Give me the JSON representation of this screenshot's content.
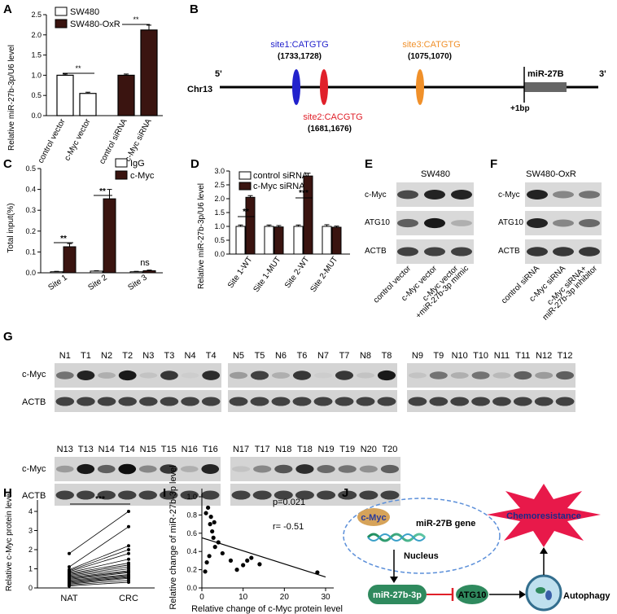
{
  "panels": {
    "A": {
      "label": "A",
      "ylabel": "Relative miR-27b-3p/U6 level",
      "legend": [
        "SW480",
        "SW480-OxR"
      ],
      "yticks": [
        "0.0",
        "0.5",
        "1.0",
        "1.5",
        "2.0",
        "2.5"
      ],
      "categories": [
        "control vector",
        "c-Myc vector",
        "control siRNA",
        "c-Myc siRNA"
      ],
      "sig": [
        "**",
        "**"
      ]
    },
    "B": {
      "label": "B",
      "site1_name": "site1:CATGTG",
      "site1_pos": "(1733,1728)",
      "site2_name": "site2:CACGTG",
      "site2_pos": "(1681,1676)",
      "site3_name": "site3:CATGTG",
      "site3_pos": "(1075,1070)",
      "gene": "miR-27B",
      "chr": "Chr13",
      "five": "5'",
      "three": "3'",
      "tss": "+1bp",
      "site1_color": "#2222cc",
      "site2_color": "#e0202a",
      "site3_color": "#f0902a"
    },
    "C": {
      "label": "C",
      "ylabel": "Total input(%)",
      "legend": [
        "IgG",
        "c-Myc"
      ],
      "yticks": [
        "0.0",
        "0.1",
        "0.2",
        "0.3",
        "0.4",
        "0.5"
      ],
      "categories": [
        "Site 1",
        "Site 2",
        "Site 3"
      ],
      "sig": [
        "**",
        "**",
        "ns"
      ]
    },
    "D": {
      "label": "D",
      "ylabel": "Relative miR-27b-3p/U6 level",
      "legend": [
        "control siRNA",
        "c-Myc siRNA"
      ],
      "yticks": [
        "0.0",
        "0.5",
        "1.0",
        "1.5",
        "2.0",
        "2.5",
        "3.0"
      ],
      "categories": [
        "Site 1-WT",
        "Site 1-MUT",
        "Site 2-WT",
        "Site 2-MUT"
      ],
      "sig": [
        "**",
        "***"
      ]
    },
    "E": {
      "label": "E",
      "cell": "SW480",
      "rows": [
        "c-Myc",
        "ATG10",
        "ACTB"
      ],
      "lanes": [
        "control vector",
        "c-Myc vector",
        "c-Myc vector",
        "+miR-27b-3p mimic"
      ]
    },
    "F": {
      "label": "F",
      "cell": "SW480-OxR",
      "rows": [
        "c-Myc",
        "ATG10",
        "ACTB"
      ],
      "lanes": [
        "control siRNA",
        "c-Myc siRNA",
        "c-Myc siRNA+",
        "miR-27b-3p inhibitor"
      ]
    },
    "G": {
      "label": "G",
      "rows": [
        "c-Myc",
        "ACTB"
      ],
      "lanes_r1": [
        [
          "N1",
          "T1",
          "N2",
          "T2",
          "N3",
          "T3",
          "N4",
          "T4"
        ],
        [
          "N5",
          "T5",
          "N6",
          "T6",
          "N7",
          "T7",
          "N8",
          "T8"
        ],
        [
          "N9",
          "T9",
          "N10",
          "T10",
          "N11",
          "T11",
          "N12",
          "T12"
        ]
      ],
      "lanes_r2": [
        [
          "N13",
          "T13",
          "N14",
          "T14",
          "N15",
          "T15",
          "N16",
          "T16"
        ],
        [
          "N17",
          "T17",
          "N18",
          "T18",
          "N19",
          "T19",
          "N20",
          "T20"
        ]
      ]
    },
    "H": {
      "label": "H",
      "ylabel": "Relative c-Myc protein level",
      "yticks": [
        "0",
        "1",
        "2",
        "3",
        "4"
      ],
      "xcats": [
        "NAT",
        "CRC"
      ],
      "sig": "***"
    },
    "I": {
      "label": "I",
      "ylabel": "Relative change of miR-27b-3p level",
      "xlabel": "Relative change of c-Myc protein level",
      "yticks": [
        "0.0",
        "0.2",
        "0.4",
        "0.6",
        "0.8",
        "1.0"
      ],
      "xticks": [
        "0",
        "10",
        "20",
        "30"
      ],
      "p": "p=0.021",
      "r": "r= -0.51"
    },
    "J": {
      "label": "J",
      "cmyc": "c-Myc",
      "gene": "miR-27B gene",
      "nucleus": "Nucleus",
      "mirna": "miR-27b-3p",
      "atg10": "ATG10",
      "autophagy": "Autophagy",
      "chemo": "Chemoresistance",
      "star_color": "#e8194a",
      "node_color": "#2f8a5e"
    }
  },
  "chart_data": [
    {
      "panel": "A",
      "type": "bar",
      "categories": [
        "control vector",
        "c-Myc vector",
        "control siRNA",
        "c-Myc siRNA"
      ],
      "values": [
        1.0,
        0.55,
        1.0,
        2.12
      ],
      "errors": [
        0.03,
        0.03,
        0.03,
        0.12
      ],
      "fills": [
        "#ffffff",
        "#ffffff",
        "#3a1410",
        "#3a1410"
      ],
      "ylim": [
        0,
        2.5
      ]
    },
    {
      "panel": "C",
      "type": "bar",
      "categories": [
        "Site 1",
        "Site 2",
        "Site 3"
      ],
      "series": [
        {
          "name": "IgG",
          "values": [
            0.005,
            0.008,
            0.005
          ],
          "errors": [
            0.002,
            0.002,
            0.002
          ]
        },
        {
          "name": "c-Myc",
          "values": [
            0.125,
            0.355,
            0.01
          ],
          "errors": [
            0.015,
            0.045,
            0.003
          ]
        }
      ],
      "ylim": [
        0,
        0.5
      ]
    },
    {
      "panel": "D",
      "type": "bar",
      "categories": [
        "Site 1-WT",
        "Site 1-MUT",
        "Site 2-WT",
        "Site 2-MUT"
      ],
      "series": [
        {
          "name": "control siRNA",
          "values": [
            1.0,
            1.0,
            1.0,
            1.0
          ],
          "errors": [
            0.05,
            0.05,
            0.05,
            0.06
          ]
        },
        {
          "name": "c-Myc siRNA",
          "values": [
            2.05,
            0.98,
            2.82,
            0.97
          ],
          "errors": [
            0.06,
            0.05,
            0.1,
            0.04
          ]
        }
      ],
      "ylim": [
        0,
        3.0
      ]
    },
    {
      "panel": "E",
      "type": "table",
      "rows": [
        "c-Myc",
        "ATG10",
        "ACTB"
      ],
      "intensity": [
        [
          0.7,
          0.9,
          0.9
        ],
        [
          0.6,
          0.95,
          0.2
        ],
        [
          0.75,
          0.75,
          0.75
        ]
      ]
    },
    {
      "panel": "F",
      "type": "table",
      "rows": [
        "c-Myc",
        "ATG10",
        "ACTB"
      ],
      "intensity": [
        [
          0.9,
          0.4,
          0.5
        ],
        [
          0.9,
          0.4,
          0.55
        ],
        [
          0.8,
          0.8,
          0.8
        ]
      ]
    },
    {
      "panel": "G",
      "type": "table",
      "cmyc_intensity": [
        [
          0.5,
          0.9,
          0.2,
          0.95,
          0.1,
          0.8,
          0.05,
          0.85
        ],
        [
          0.3,
          0.75,
          0.2,
          0.8,
          0.05,
          0.8,
          0.1,
          0.95
        ],
        [
          0.1,
          0.5,
          0.2,
          0.5,
          0.15,
          0.6,
          0.3,
          0.6
        ],
        [
          0.3,
          0.95,
          0.6,
          1.0,
          0.4,
          0.8,
          0.2,
          0.9
        ],
        [
          0.1,
          0.4,
          0.65,
          0.85,
          0.55,
          0.5,
          0.35,
          0.6
        ]
      ]
    },
    {
      "panel": "H",
      "type": "line",
      "xcats": [
        "NAT",
        "CRC"
      ],
      "pairs": [
        [
          0.1,
          0.3
        ],
        [
          0.15,
          0.4
        ],
        [
          0.2,
          0.5
        ],
        [
          0.25,
          0.55
        ],
        [
          0.3,
          0.6
        ],
        [
          0.35,
          0.65
        ],
        [
          0.4,
          0.7
        ],
        [
          0.45,
          0.8
        ],
        [
          0.5,
          0.85
        ],
        [
          0.55,
          0.9
        ],
        [
          0.6,
          1.0
        ],
        [
          0.65,
          1.1
        ],
        [
          0.7,
          1.2
        ],
        [
          0.75,
          1.3
        ],
        [
          0.8,
          1.5
        ],
        [
          0.85,
          1.8
        ],
        [
          0.9,
          2.0
        ],
        [
          0.95,
          2.2
        ],
        [
          1.1,
          3.2
        ],
        [
          1.8,
          4.0
        ]
      ],
      "ylim": [
        0,
        4
      ]
    },
    {
      "panel": "I",
      "type": "scatter",
      "x": [
        1.0,
        1.5,
        2.0,
        2.2,
        2.5,
        3.0,
        3.2,
        1.2,
        1.8,
        0.8,
        4.0,
        5.0,
        7.0,
        8.5,
        10.0,
        11.0,
        12.0,
        14.0,
        2.8,
        28.0
      ],
      "y": [
        0.82,
        0.88,
        0.7,
        0.78,
        0.62,
        0.72,
        0.45,
        0.28,
        0.35,
        0.18,
        0.5,
        0.38,
        0.3,
        0.2,
        0.25,
        0.3,
        0.33,
        0.26,
        0.55,
        0.17
      ],
      "fit": [
        [
          0,
          0.55
        ],
        [
          30,
          0.12
        ]
      ],
      "xlim": [
        0,
        30
      ],
      "ylim": [
        0,
        1.0
      ]
    }
  ]
}
